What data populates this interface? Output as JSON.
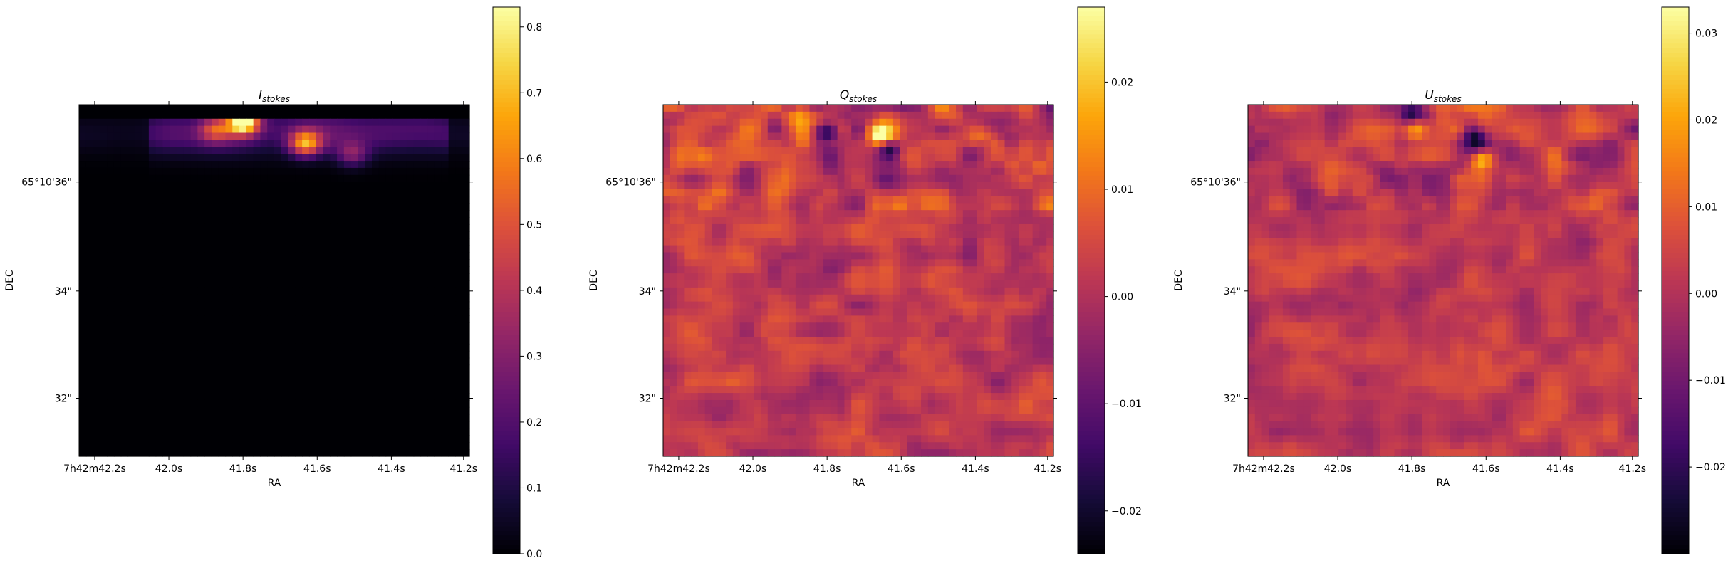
{
  "chart_data": [
    {
      "type": "heatmap",
      "title": "I",
      "title_sub": "stokes",
      "xlabel": "RA",
      "ylabel": "DEC",
      "x_ticks": [
        "7h42m42.2s",
        "42.0s",
        "41.8s",
        "41.6s",
        "41.4s",
        "41.2s"
      ],
      "y_ticks": [
        "65°10'36\"",
        "34\"",
        "32\""
      ],
      "colormap": "inferno",
      "colorbar_range": [
        0.0,
        0.83
      ],
      "colorbar_ticks": [
        "0.0",
        "0.1",
        "0.2",
        "0.3",
        "0.4",
        "0.5",
        "0.6",
        "0.7",
        "0.8"
      ],
      "colorbar_tick_values": [
        0.0,
        0.1,
        0.2,
        0.3,
        0.4,
        0.5,
        0.6,
        0.7,
        0.8
      ],
      "features": [
        {
          "x": 0.42,
          "y": 0.05,
          "value": 0.83
        },
        {
          "x": 0.58,
          "y": 0.11,
          "value": 0.55
        },
        {
          "x": 0.35,
          "y": 0.07,
          "value": 0.35
        },
        {
          "x": 0.7,
          "y": 0.14,
          "value": 0.25
        }
      ]
    },
    {
      "type": "heatmap",
      "title": "Q",
      "title_sub": "stokes",
      "xlabel": "RA",
      "ylabel": "DEC",
      "x_ticks": [
        "7h42m42.2s",
        "42.0s",
        "41.8s",
        "41.6s",
        "41.4s",
        "41.2s"
      ],
      "y_ticks": [
        "65°10'36\"",
        "34\"",
        "32\""
      ],
      "colormap": "inferno",
      "colorbar_range": [
        -0.024,
        0.027
      ],
      "colorbar_ticks": [
        "−0.02",
        "−0.01",
        "0.00",
        "0.01",
        "0.02"
      ],
      "colorbar_tick_values": [
        -0.02,
        -0.01,
        0.0,
        0.01,
        0.02
      ],
      "features": [
        {
          "x": 0.42,
          "y": 0.08,
          "value": -0.024
        },
        {
          "x": 0.58,
          "y": 0.13,
          "value": -0.02
        },
        {
          "x": 0.56,
          "y": 0.09,
          "value": 0.027
        },
        {
          "x": 0.35,
          "y": 0.03,
          "value": 0.015
        },
        {
          "x": 0.82,
          "y": 0.09,
          "value": 0.014
        }
      ]
    },
    {
      "type": "heatmap",
      "title": "U",
      "title_sub": "stokes",
      "xlabel": "RA",
      "ylabel": "DEC",
      "x_ticks": [
        "7h42m42.2s",
        "42.0s",
        "41.8s",
        "41.6s",
        "41.4s",
        "41.2s"
      ],
      "y_ticks": [
        "65°10'36\"",
        "34\"",
        "32\""
      ],
      "colormap": "inferno",
      "colorbar_range": [
        -0.03,
        0.033
      ],
      "colorbar_ticks": [
        "−0.02",
        "−0.01",
        "0.00",
        "0.01",
        "0.02",
        "0.03"
      ],
      "colorbar_tick_values": [
        -0.02,
        -0.01,
        0.0,
        0.01,
        0.02,
        0.03
      ],
      "features": [
        {
          "x": 0.43,
          "y": 0.07,
          "value": 0.033
        },
        {
          "x": 0.6,
          "y": 0.16,
          "value": 0.028
        },
        {
          "x": 0.58,
          "y": 0.1,
          "value": -0.03
        },
        {
          "x": 0.42,
          "y": 0.03,
          "value": -0.025
        }
      ]
    }
  ]
}
